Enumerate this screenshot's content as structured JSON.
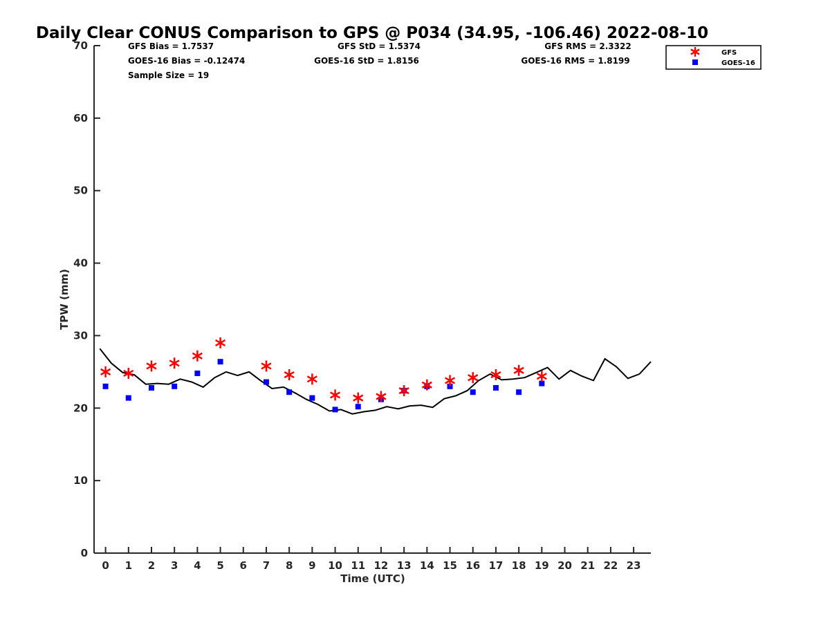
{
  "chart_data": {
    "type": "scatter",
    "title": "Daily Clear CONUS Comparison to GPS @ P034 (34.95, -106.46) 2022-08-10",
    "xlabel": "Time (UTC)",
    "ylabel": "TPW (mm)",
    "xlim": [
      -0.5,
      23.75
    ],
    "ylim": [
      0,
      70
    ],
    "x_ticks": [
      "0",
      "1",
      "2",
      "3",
      "4",
      "5",
      "6",
      "7",
      "8",
      "9",
      "10",
      "11",
      "12",
      "13",
      "14",
      "15",
      "16",
      "17",
      "18",
      "19",
      "20",
      "21",
      "22",
      "23"
    ],
    "y_ticks": [
      "0",
      "10",
      "20",
      "30",
      "40",
      "50",
      "60",
      "70"
    ],
    "grid": false,
    "legend_position": "top-right, outside plot",
    "stats": [
      "GFS Bias = 1.7537",
      "GOES-16 Bias = -0.12474",
      "Sample Size = 19",
      "GFS StD = 1.5374",
      "GOES-16 StD = 1.8156",
      "GFS RMS = 2.3322",
      "GOES-16 RMS = 1.8199"
    ],
    "series": [
      {
        "name": "GFS",
        "marker": "asterisk",
        "color": "#ff0000",
        "x": [
          0,
          1,
          2,
          3,
          4,
          5,
          7,
          8,
          9,
          10,
          11,
          12,
          13,
          14,
          15,
          16,
          17,
          18,
          19
        ],
        "y": [
          25.0,
          24.8,
          25.8,
          26.2,
          27.2,
          29.0,
          25.8,
          24.6,
          24.0,
          21.8,
          21.4,
          21.6,
          22.4,
          23.2,
          23.8,
          24.2,
          24.6,
          25.2,
          24.4
        ]
      },
      {
        "name": "GOES-16",
        "marker": "square",
        "color": "#0000ff",
        "x": [
          0,
          1,
          2,
          3,
          4,
          5,
          7,
          8,
          9,
          10,
          11,
          12,
          13,
          14,
          15,
          16,
          17,
          18,
          19
        ],
        "y": [
          23.0,
          21.4,
          22.8,
          23.0,
          24.8,
          26.4,
          23.6,
          22.2,
          21.4,
          19.8,
          20.2,
          21.2,
          22.4,
          23.0,
          23.0,
          22.2,
          22.8,
          22.2,
          23.4
        ]
      },
      {
        "marker": "line",
        "color": "#000000",
        "x": [
          -0.25,
          0.25,
          0.75,
          1.25,
          1.75,
          2.25,
          2.75,
          3.25,
          3.75,
          4.25,
          4.75,
          5.25,
          5.75,
          6.25,
          6.75,
          7.25,
          7.75,
          8.25,
          8.75,
          9.25,
          9.75,
          10.25,
          10.75,
          11.25,
          11.75,
          12.25,
          12.75,
          13.25,
          13.75,
          14.25,
          14.75,
          15.25,
          15.75,
          16.25,
          16.75,
          17.25,
          17.75,
          18.25,
          18.75,
          19.25,
          19.75,
          20.25,
          20.75,
          21.25,
          21.75,
          22.25,
          22.75,
          23.25,
          23.75
        ],
        "y": [
          28.2,
          26.2,
          24.9,
          24.6,
          23.3,
          23.4,
          23.3,
          24.0,
          23.6,
          22.9,
          24.2,
          25.0,
          24.5,
          25.0,
          23.8,
          22.7,
          22.9,
          22.1,
          21.2,
          20.5,
          19.6,
          19.8,
          19.2,
          19.5,
          19.7,
          20.2,
          19.9,
          20.3,
          20.4,
          20.1,
          21.3,
          21.7,
          22.4,
          23.8,
          24.7,
          23.9,
          24.0,
          24.2,
          24.9,
          25.6,
          24.0,
          25.2,
          24.4,
          23.8,
          26.8,
          25.7,
          24.1,
          24.7,
          26.4
        ]
      }
    ]
  }
}
